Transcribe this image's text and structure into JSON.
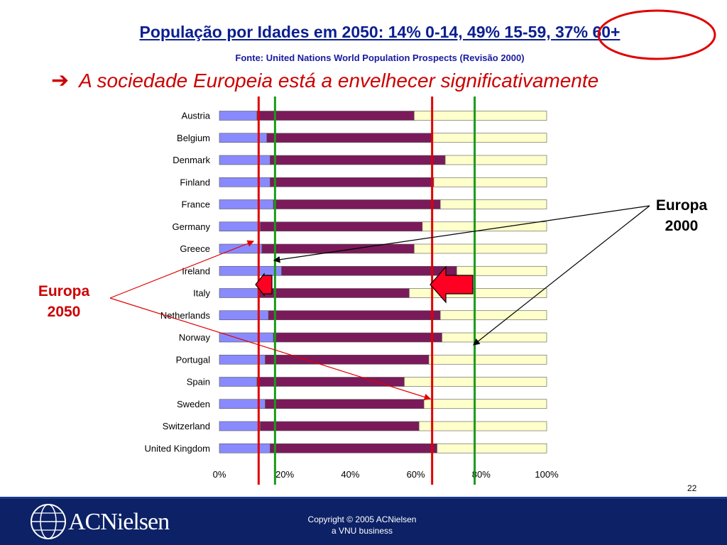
{
  "slide": {
    "title": "População por Idades em 2050: 14% 0-14, 49% 15-59, 37% 60+",
    "source": "Fonte: United Nations World Population Prospects (Revisão 2000)",
    "headline_arrow": "➔",
    "headline": "A sociedade Europeia está a envelhecer significativamente",
    "page_number": "22"
  },
  "callouts": {
    "europa_2000": {
      "line1": "Europa",
      "line2": "2000",
      "color": "#000000"
    },
    "europa_2050": {
      "line1": "Europa",
      "line2": "2050",
      "color": "#cc0000"
    }
  },
  "footer": {
    "logo_text": "ACNielsen",
    "copyright_line1": "Copyright © 2005 ACNielsen",
    "copyright_line2": "a VNU business"
  },
  "chart_data": {
    "type": "bar",
    "orientation": "horizontal",
    "stacked": "percent",
    "categories": [
      "Austria",
      "Belgium",
      "Denmark",
      "Finland",
      "France",
      "Germany",
      "Greece",
      "Ireland",
      "Italy",
      "Netherlands",
      "Norway",
      "Portugal",
      "Spain",
      "Sweden",
      "Switzerland",
      "United Kingdom"
    ],
    "series": [
      {
        "values": [
          11.5,
          14.5,
          15.5,
          15.5,
          16.5,
          12.5,
          13,
          19,
          12,
          15,
          16.5,
          14,
          11.5,
          14,
          12.5,
          15.5
        ],
        "color": "#8a8aff"
      },
      {
        "values": [
          48,
          50.5,
          53.5,
          50,
          51,
          49.5,
          46.5,
          53.5,
          46,
          52.5,
          51.5,
          50,
          45,
          48.5,
          48.5,
          51
        ],
        "color": "#7b1a5a"
      },
      {
        "values": [
          40.5,
          35,
          31,
          34.5,
          32.5,
          38,
          40.5,
          27.5,
          42,
          32.5,
          32,
          36,
          43.5,
          37.5,
          39,
          33.5
        ],
        "color": "#ffffcc"
      }
    ],
    "x_ticks": [
      "0%",
      "20%",
      "40%",
      "60%",
      "80%",
      "100%"
    ],
    "xlim": [
      0,
      100
    ],
    "reference_lines": [
      {
        "label": "Europa 2050",
        "values": [
          12,
          65
        ],
        "color": "#e00000"
      },
      {
        "label": "Europa 2000",
        "values": [
          17,
          78
        ],
        "color": "#1a9a1a"
      }
    ],
    "legend": "none",
    "grid": false
  }
}
